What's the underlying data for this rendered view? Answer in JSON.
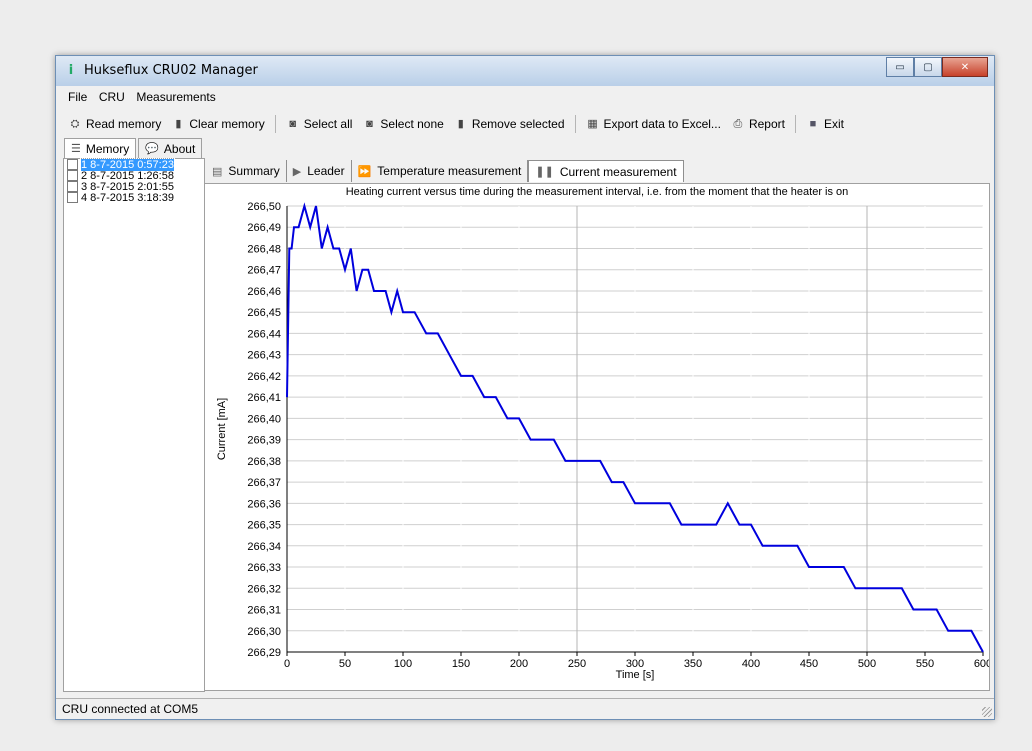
{
  "window": {
    "title": "Hukseflux CRU02 Manager",
    "minimize": "▭",
    "maximize": "▢",
    "close": "✕"
  },
  "menu": [
    "File",
    "CRU",
    "Measurements"
  ],
  "toolbar": {
    "read_memory": "Read memory",
    "clear_memory": "Clear memory",
    "select_all": "Select all",
    "select_none": "Select none",
    "remove_selected": "Remove selected",
    "export_excel": "Export data to Excel...",
    "report": "Report",
    "exit": "Exit"
  },
  "left_tabs": {
    "memory": "Memory",
    "about": "About"
  },
  "measurements": [
    {
      "label": "1 8-7-2015 0:57:23",
      "selected": true
    },
    {
      "label": "2 8-7-2015 1:26:58",
      "selected": false
    },
    {
      "label": "3 8-7-2015 2:01:55",
      "selected": false
    },
    {
      "label": "4 8-7-2015 3:18:39",
      "selected": false
    }
  ],
  "right_tabs": {
    "summary": "Summary",
    "leader": "Leader",
    "temperature": "Temperature measurement",
    "current": "Current measurement"
  },
  "status": "CRU connected at COM5",
  "chart_data": {
    "type": "line",
    "title": "Heating current versus time during the measurement interval, i.e. from the moment that the heater is on",
    "xlabel": "Time [s]",
    "ylabel": "Current [mA]",
    "xlim": [
      0,
      600
    ],
    "ylim": [
      266.29,
      266.5
    ],
    "x_ticks": [
      "0",
      "50",
      "100",
      "150",
      "200",
      "250",
      "300",
      "350",
      "400",
      "450",
      "500",
      "550",
      "600"
    ],
    "y_ticks": [
      "266,50",
      "266,49",
      "266,48",
      "266,47",
      "266,46",
      "266,45",
      "266,44",
      "266,43",
      "266,42",
      "266,41",
      "266,40",
      "266,39",
      "266,38",
      "266,37",
      "266,36",
      "266,35",
      "266,34",
      "266,33",
      "266,32",
      "266,31",
      "266,30",
      "266,29"
    ],
    "grid": true,
    "series": [
      {
        "color": "#0000dd",
        "x": [
          0,
          2,
          4,
          6,
          10,
          15,
          20,
          25,
          30,
          35,
          40,
          45,
          50,
          55,
          60,
          65,
          70,
          75,
          80,
          85,
          90,
          95,
          100,
          110,
          120,
          130,
          140,
          150,
          160,
          170,
          180,
          190,
          200,
          210,
          220,
          230,
          240,
          250,
          260,
          270,
          280,
          290,
          300,
          310,
          320,
          330,
          340,
          350,
          360,
          370,
          380,
          390,
          400,
          410,
          420,
          430,
          440,
          450,
          460,
          470,
          480,
          490,
          500,
          510,
          520,
          530,
          540,
          550,
          560,
          570,
          580,
          590,
          600
        ],
        "y": [
          266.41,
          266.48,
          266.48,
          266.49,
          266.49,
          266.5,
          266.49,
          266.5,
          266.48,
          266.49,
          266.48,
          266.48,
          266.47,
          266.48,
          266.46,
          266.47,
          266.47,
          266.46,
          266.46,
          266.46,
          266.45,
          266.46,
          266.45,
          266.45,
          266.44,
          266.44,
          266.43,
          266.42,
          266.42,
          266.41,
          266.41,
          266.4,
          266.4,
          266.39,
          266.39,
          266.39,
          266.38,
          266.38,
          266.38,
          266.38,
          266.37,
          266.37,
          266.36,
          266.36,
          266.36,
          266.36,
          266.35,
          266.35,
          266.35,
          266.35,
          266.36,
          266.35,
          266.35,
          266.34,
          266.34,
          266.34,
          266.34,
          266.33,
          266.33,
          266.33,
          266.33,
          266.32,
          266.32,
          266.32,
          266.32,
          266.32,
          266.31,
          266.31,
          266.31,
          266.3,
          266.3,
          266.3,
          266.29
        ]
      }
    ]
  }
}
